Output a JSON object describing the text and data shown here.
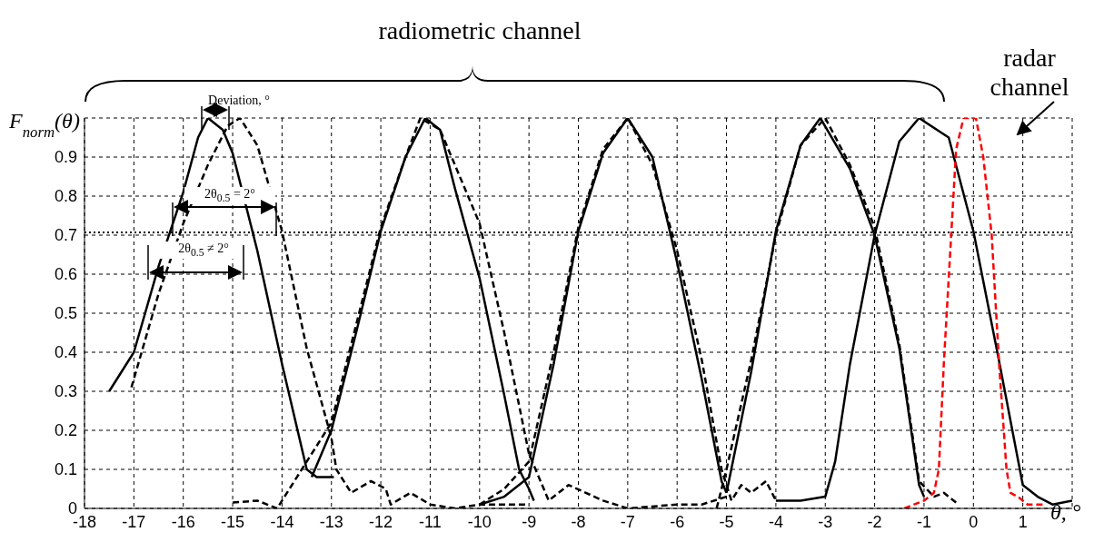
{
  "chart_data": {
    "type": "line",
    "xlabel": "θ, °",
    "ylabel": "F$_{norm}$(θ)",
    "annotations": [
      "radiometric channel",
      "radar channel",
      "Deviation, °",
      "2θ$_{0.5}$ = 2°",
      "2θ$_{0.5}$ ≠ 2°"
    ],
    "xlim": [
      -18,
      2
    ],
    "xticks": [
      -18,
      -17,
      -16,
      -15,
      -14,
      -13,
      -12,
      -11,
      -10,
      -9,
      -8,
      -7,
      -6,
      -5,
      -4,
      -3,
      -2,
      -1,
      0,
      1,
      {
        "value": 2,
        "label": null
      }
    ],
    "ylim": [
      0,
      1
    ],
    "yticks": [
      0,
      0.1,
      0.2,
      0.3,
      0.4,
      0.5,
      0.6,
      0.7,
      0.8,
      0.9,
      {
        "value": 1,
        "label": null
      }
    ],
    "grid": true,
    "ref_lines": [
      {
        "axis": "y",
        "value": 0.707,
        "color": "#000000",
        "line_style": "dotted"
      }
    ],
    "series": [
      {
        "color": "#000000",
        "line_style": "solid",
        "x": [
          -17.5,
          -17,
          -16.5,
          -16,
          -15.7,
          -15.5,
          -15.2,
          -15,
          -14.5,
          -14,
          -13.5,
          -13.3,
          -12.95
        ],
        "values": [
          0.3,
          0.4,
          0.62,
          0.81,
          0.95,
          1,
          0.97,
          0.91,
          0.66,
          0.37,
          0.1,
          0.08,
          0.08
        ]
      },
      {
        "color": "#000000",
        "line_style": "solid",
        "x": [
          -13.4,
          -13,
          -12.5,
          -12,
          -11.5,
          -11.1,
          -10.8,
          -10.5,
          -10,
          -9.5,
          -9.2,
          -9,
          -8.9
        ],
        "values": [
          0.08,
          0.2,
          0.45,
          0.71,
          0.9,
          1,
          0.97,
          0.82,
          0.59,
          0.29,
          0.1,
          0.05,
          0.02
        ]
      },
      {
        "color": "#000000",
        "line_style": "solid",
        "x": [
          -10,
          -9.5,
          -9,
          -8.5,
          -8,
          -7.5,
          -7,
          -6.5,
          -6,
          -5.5,
          -5.1,
          -5
        ],
        "values": [
          0.01,
          0.03,
          0.08,
          0.37,
          0.71,
          0.91,
          1,
          0.9,
          0.63,
          0.33,
          0.07,
          0.04
        ]
      },
      {
        "color": "#000000",
        "line_style": "solid",
        "x": [
          -5,
          -4.5,
          -4,
          -3.5,
          -3.1,
          -2.5,
          -2,
          -1.5,
          -1.1,
          -1
        ],
        "values": [
          0.04,
          0.35,
          0.71,
          0.93,
          1,
          0.87,
          0.7,
          0.41,
          0.06,
          0.03
        ]
      },
      {
        "color": "#000000",
        "line_style": "solid",
        "x": [
          -4,
          -3.5,
          -3,
          -2.8,
          -2.5,
          -2,
          -1.5,
          -1.1,
          -0.5,
          0,
          0.5,
          1,
          1.3,
          1.6,
          2
        ],
        "values": [
          0.02,
          0.02,
          0.03,
          0.12,
          0.37,
          0.7,
          0.94,
          1,
          0.95,
          0.71,
          0.39,
          0.06,
          0.03,
          0.01,
          0.02
        ]
      },
      {
        "color": "#000000",
        "line_style": "dashed",
        "x": [
          -17.05,
          -16.5,
          -16,
          -15.5,
          -15.1,
          -14.85,
          -14.5,
          -14,
          -13.5,
          -13,
          -12.9,
          -12.6,
          -12.2,
          -11.9,
          -11.8,
          -11.4,
          -11,
          -10.5,
          -10,
          -9.5,
          -9
        ],
        "values": [
          0.31,
          0.55,
          0.73,
          0.88,
          0.98,
          1,
          0.93,
          0.71,
          0.41,
          0.18,
          0.1,
          0.04,
          0.07,
          0.05,
          0.01,
          0.04,
          0.01,
          0,
          0.01,
          0.01,
          0.01
        ]
      },
      {
        "color": "#000000",
        "line_style": "dashed",
        "x": [
          -15,
          -14.5,
          -14.1,
          -13.7,
          -13,
          -12.5,
          -12,
          -11.5,
          -11.2,
          -10.8,
          -10.5,
          -10,
          -9.5,
          -9,
          -8.6,
          -8.2,
          -7.5,
          -7,
          -6,
          -5.5,
          -5
        ],
        "values": [
          0.015,
          0.02,
          0,
          0.08,
          0.22,
          0.47,
          0.72,
          0.9,
          1,
          0.97,
          0.88,
          0.73,
          0.45,
          0.14,
          0.02,
          0.06,
          0.02,
          0,
          0.01,
          0.01,
          0.03
        ]
      },
      {
        "color": "#000000",
        "line_style": "dashed",
        "x": [
          -10,
          -9.5,
          -9,
          -8.5,
          -8,
          -7.5,
          -7,
          -6.5,
          -6,
          -5.5,
          -5.1,
          -4.9,
          -4.7,
          -4.5,
          -4.2,
          -4
        ],
        "values": [
          0.01,
          0.05,
          0.12,
          0.4,
          0.72,
          0.92,
          1,
          0.88,
          0.66,
          0.38,
          0.1,
          0.02,
          0.06,
          0.04,
          0.07,
          0.02
        ]
      },
      {
        "color": "#000000",
        "line_style": "dashed",
        "x": [
          -5.2,
          -5,
          -4.5,
          -4,
          -3.5,
          -3,
          -2.5,
          -2,
          -1.5,
          -1.1,
          -0.8,
          -0.6,
          -0.3
        ],
        "values": [
          0,
          0.1,
          0.38,
          0.7,
          0.93,
          1,
          0.88,
          0.72,
          0.42,
          0.07,
          0.03,
          0.04,
          0.01
        ]
      },
      {
        "color": "#ff0000",
        "line_style": "dashed",
        "x": [
          -1.4,
          -1.2,
          -1,
          -0.8,
          -0.7,
          -0.6,
          -0.45,
          -0.35,
          -0.2,
          0.05,
          0.2,
          0.37,
          0.52,
          0.67,
          0.75,
          0.9,
          1.1,
          1.4
        ],
        "values": [
          0,
          0.01,
          0.02,
          0.04,
          0.1,
          0.37,
          0.7,
          0.92,
          1,
          1,
          0.9,
          0.7,
          0.37,
          0.1,
          0.04,
          0.03,
          0.01,
          0.01
        ]
      }
    ]
  }
}
